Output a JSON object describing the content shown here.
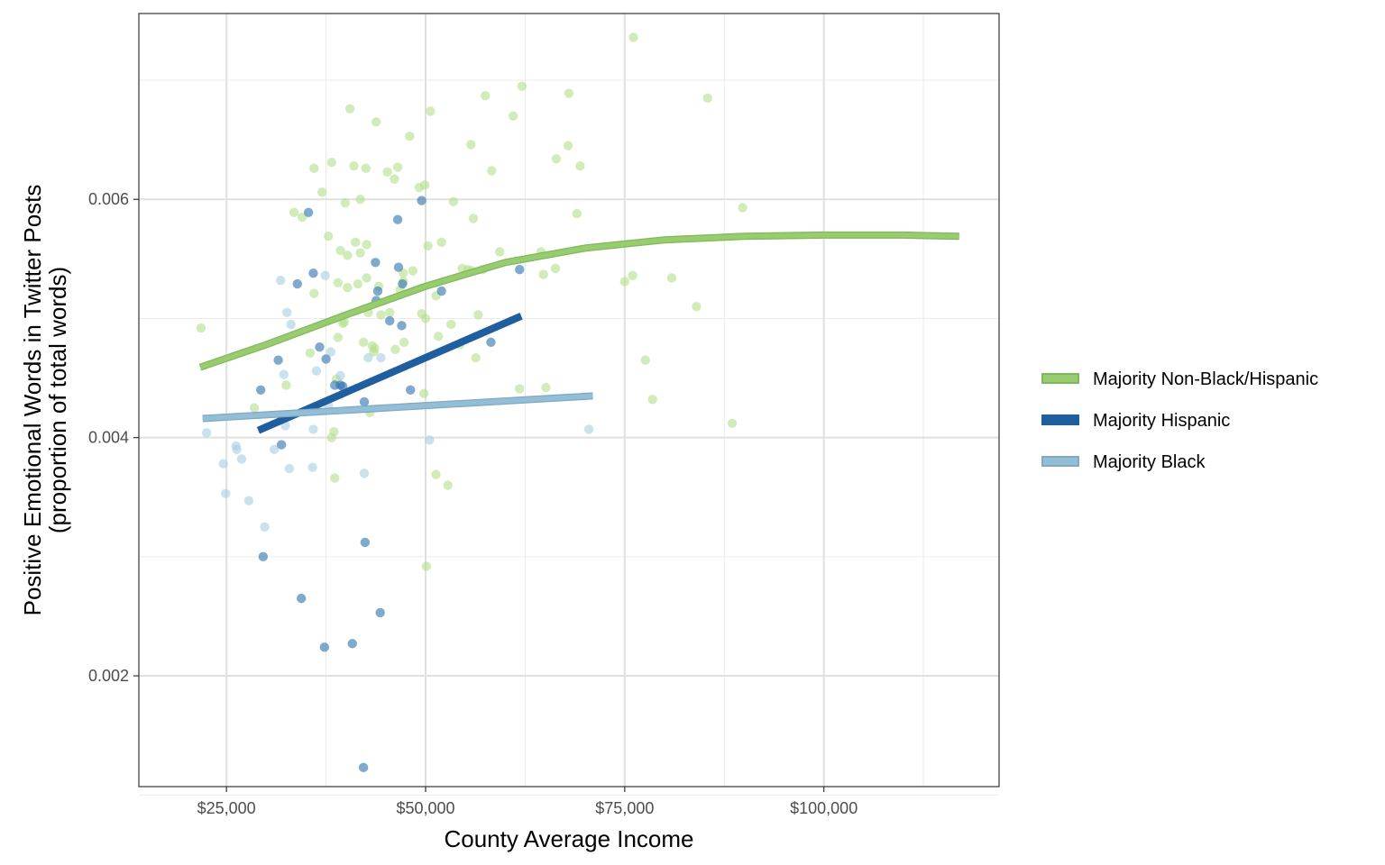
{
  "chart_data": {
    "type": "scatter",
    "xlabel": "County Average Income",
    "ylabel": "Positive Emotional Words in Twitter Posts",
    "ylabel2": "(proportion of total words)",
    "xlim": [
      14000,
      122000
    ],
    "ylim": [
      0.00107,
      0.00756
    ],
    "x_ticks": [
      25000,
      50000,
      75000,
      100000
    ],
    "x_tick_labels": [
      "$25,000",
      "$50,000",
      "$75,000",
      "$100,000"
    ],
    "x_minor_ticks": [
      37500,
      62500,
      87500,
      112500
    ],
    "y_ticks": [
      0.002,
      0.004,
      0.006
    ],
    "y_tick_labels": [
      "0.002",
      "0.004",
      "0.006"
    ],
    "y_minor_ticks": [
      0.001,
      0.003,
      0.005,
      0.007
    ],
    "grid": true,
    "legend_position": "right",
    "series": [
      {
        "name": "Majority Non-Black/Hispanic",
        "point_color": "#b2df8a",
        "line_color": "#99cc6e",
        "line_edge_color": "#7fb85e",
        "points": [
          [
            21800,
            0.00492
          ],
          [
            28500,
            0.00425
          ],
          [
            32500,
            0.00444
          ],
          [
            33500,
            0.00589
          ],
          [
            34500,
            0.00585
          ],
          [
            35500,
            0.00471
          ],
          [
            36000,
            0.00626
          ],
          [
            36000,
            0.00521
          ],
          [
            37000,
            0.00606
          ],
          [
            37800,
            0.00569
          ],
          [
            38200,
            0.00631
          ],
          [
            38200,
            0.004
          ],
          [
            38500,
            0.00405
          ],
          [
            38600,
            0.00366
          ],
          [
            38800,
            0.00449
          ],
          [
            39000,
            0.00484
          ],
          [
            39000,
            0.0053
          ],
          [
            39300,
            0.00557
          ],
          [
            39600,
            0.00496
          ],
          [
            39800,
            0.00497
          ],
          [
            39900,
            0.00597
          ],
          [
            40200,
            0.00553
          ],
          [
            40200,
            0.00526
          ],
          [
            40500,
            0.00676
          ],
          [
            41000,
            0.00628
          ],
          [
            41200,
            0.00564
          ],
          [
            41500,
            0.00529
          ],
          [
            41800,
            0.006
          ],
          [
            41800,
            0.00555
          ],
          [
            42200,
            0.0048
          ],
          [
            42500,
            0.00626
          ],
          [
            42600,
            0.00534
          ],
          [
            42600,
            0.00562
          ],
          [
            42800,
            0.00505
          ],
          [
            43000,
            0.00421
          ],
          [
            43300,
            0.00477
          ],
          [
            43500,
            0.00472
          ],
          [
            43600,
            0.00475
          ],
          [
            43800,
            0.00665
          ],
          [
            44100,
            0.00527
          ],
          [
            44400,
            0.00503
          ],
          [
            45200,
            0.00623
          ],
          [
            45500,
            0.00505
          ],
          [
            46100,
            0.00617
          ],
          [
            46200,
            0.00474
          ],
          [
            46500,
            0.00627
          ],
          [
            46800,
            0.00524
          ],
          [
            47200,
            0.00531
          ],
          [
            47200,
            0.00538
          ],
          [
            47300,
            0.0048
          ],
          [
            48000,
            0.00653
          ],
          [
            48400,
            0.0054
          ],
          [
            49200,
            0.0061
          ],
          [
            49500,
            0.00504
          ],
          [
            49800,
            0.00437
          ],
          [
            49900,
            0.00612
          ],
          [
            50000,
            0.005
          ],
          [
            50100,
            0.00292
          ],
          [
            50300,
            0.00561
          ],
          [
            50600,
            0.00674
          ],
          [
            51300,
            0.00369
          ],
          [
            51300,
            0.00519
          ],
          [
            51600,
            0.00485
          ],
          [
            52000,
            0.00564
          ],
          [
            52800,
            0.0036
          ],
          [
            53200,
            0.00495
          ],
          [
            53500,
            0.00598
          ],
          [
            54300,
            0.00478
          ],
          [
            54600,
            0.00542
          ],
          [
            55300,
            0.00541
          ],
          [
            55700,
            0.00646
          ],
          [
            55800,
            0.0054
          ],
          [
            56000,
            0.00584
          ],
          [
            56300,
            0.00467
          ],
          [
            56600,
            0.00503
          ],
          [
            57200,
            0.00541
          ],
          [
            57500,
            0.00687
          ],
          [
            58300,
            0.00624
          ],
          [
            59300,
            0.00556
          ],
          [
            61000,
            0.0067
          ],
          [
            61800,
            0.00441
          ],
          [
            62100,
            0.00695
          ],
          [
            64500,
            0.00556
          ],
          [
            64800,
            0.00537
          ],
          [
            65100,
            0.00442
          ],
          [
            66300,
            0.00542
          ],
          [
            66400,
            0.00634
          ],
          [
            67900,
            0.00645
          ],
          [
            68000,
            0.00689
          ],
          [
            69000,
            0.00588
          ],
          [
            69400,
            0.00628
          ],
          [
            75000,
            0.00531
          ],
          [
            76000,
            0.00536
          ],
          [
            76100,
            0.00736
          ],
          [
            77600,
            0.00465
          ],
          [
            78500,
            0.00432
          ],
          [
            80900,
            0.00534
          ],
          [
            84000,
            0.0051
          ],
          [
            85400,
            0.00685
          ],
          [
            88500,
            0.00412
          ],
          [
            89800,
            0.00593
          ]
        ],
        "fit_x": [
          21700,
          30000,
          40000,
          50000,
          60000,
          70000,
          80000,
          90000,
          100000,
          110000,
          117000
        ],
        "fit_y": [
          0.00459,
          0.00478,
          0.00503,
          0.00527,
          0.00547,
          0.00559,
          0.00566,
          0.00569,
          0.0057,
          0.0057,
          0.00569
        ]
      },
      {
        "name": "Majority Hispanic",
        "point_color": "#2b6fad",
        "line_color": "#1f5fa0",
        "line_edge_color": "#1f5fa0",
        "points": [
          [
            29300,
            0.0044
          ],
          [
            29600,
            0.003
          ],
          [
            31500,
            0.00465
          ],
          [
            31900,
            0.00394
          ],
          [
            33900,
            0.00529
          ],
          [
            34400,
            0.00265
          ],
          [
            35300,
            0.00589
          ],
          [
            35900,
            0.00538
          ],
          [
            36700,
            0.00476
          ],
          [
            37300,
            0.00224
          ],
          [
            37500,
            0.00466
          ],
          [
            38600,
            0.00444
          ],
          [
            39300,
            0.00444
          ],
          [
            39600,
            0.00443
          ],
          [
            40800,
            0.00227
          ],
          [
            42200,
            0.00123
          ],
          [
            42300,
            0.0043
          ],
          [
            42400,
            0.00312
          ],
          [
            43700,
            0.00547
          ],
          [
            43800,
            0.00515
          ],
          [
            44000,
            0.00523
          ],
          [
            44300,
            0.00253
          ],
          [
            45500,
            0.00498
          ],
          [
            46500,
            0.00583
          ],
          [
            46600,
            0.00543
          ],
          [
            47000,
            0.00494
          ],
          [
            47100,
            0.00529
          ],
          [
            48100,
            0.0044
          ],
          [
            49500,
            0.00599
          ],
          [
            52000,
            0.00523
          ],
          [
            58200,
            0.0048
          ],
          [
            61800,
            0.00541
          ]
        ],
        "fit_x": [
          29000,
          62000
        ],
        "fit_y": [
          0.00406,
          0.00502
        ]
      },
      {
        "name": "Majority Black",
        "point_color": "#a6cee3",
        "line_color": "#94bdd6",
        "line_edge_color": "#7fa9c4",
        "points": [
          [
            22500,
            0.00404
          ],
          [
            24600,
            0.00378
          ],
          [
            24900,
            0.00353
          ],
          [
            26200,
            0.00393
          ],
          [
            26300,
            0.0039
          ],
          [
            26900,
            0.00382
          ],
          [
            27800,
            0.00347
          ],
          [
            29800,
            0.00325
          ],
          [
            31000,
            0.0039
          ],
          [
            31800,
            0.00532
          ],
          [
            32200,
            0.00453
          ],
          [
            32400,
            0.0041
          ],
          [
            32600,
            0.00505
          ],
          [
            32900,
            0.00374
          ],
          [
            33100,
            0.00495
          ],
          [
            35800,
            0.00375
          ],
          [
            35900,
            0.00407
          ],
          [
            36300,
            0.00456
          ],
          [
            37400,
            0.00536
          ],
          [
            37800,
            0.00427
          ],
          [
            38100,
            0.00472
          ],
          [
            39300,
            0.00452
          ],
          [
            42300,
            0.0037
          ],
          [
            42800,
            0.00467
          ],
          [
            44400,
            0.00467
          ],
          [
            50500,
            0.00398
          ],
          [
            70500,
            0.00407
          ]
        ],
        "fit_x": [
          22000,
          71000
        ],
        "fit_y": [
          0.00416,
          0.00435
        ]
      }
    ]
  }
}
